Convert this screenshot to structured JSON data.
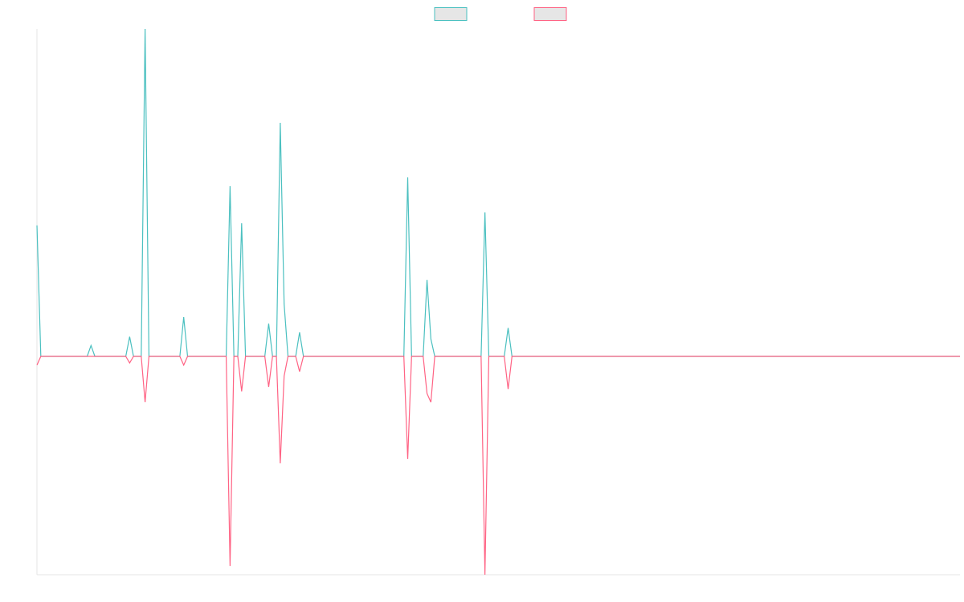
{
  "chart_data": {
    "type": "line",
    "legend": "top",
    "ylim": [
      -1,
      1.5
    ],
    "series": [
      {
        "color": "#4bc0c0",
        "values": [
          0.6,
          0,
          0,
          0,
          0,
          0,
          0,
          0,
          0,
          0,
          0,
          0,
          0,
          0,
          0.05,
          0,
          0,
          0,
          0,
          0,
          0,
          0,
          0,
          0,
          0.09,
          0,
          0,
          0,
          1.5,
          0,
          0,
          0,
          0,
          0,
          0,
          0,
          0,
          0,
          0.18,
          0,
          0,
          0,
          0,
          0,
          0,
          0,
          0,
          0,
          0,
          0,
          0.78,
          0,
          0,
          0.61,
          0,
          0,
          0,
          0,
          0,
          0,
          0.15,
          0,
          0,
          1.07,
          0.24,
          0,
          0,
          0,
          0.11,
          0,
          0,
          0,
          0,
          0,
          0,
          0,
          0,
          0,
          0,
          0,
          0,
          0,
          0,
          0,
          0,
          0,
          0,
          0,
          0,
          0,
          0,
          0,
          0,
          0,
          0,
          0,
          0.82,
          0,
          0,
          0,
          0,
          0.35,
          0.08,
          0,
          0,
          0,
          0,
          0,
          0,
          0,
          0,
          0,
          0,
          0,
          0,
          0,
          0.66,
          0,
          0,
          0,
          0,
          0,
          0.13,
          0,
          0,
          0,
          0,
          0,
          0,
          0,
          0,
          0,
          0,
          0,
          0,
          0,
          0,
          0,
          0,
          0,
          0,
          0,
          0,
          0,
          0,
          0,
          0,
          0,
          0,
          0,
          0,
          0,
          0,
          0,
          0,
          0,
          0,
          0,
          0,
          0,
          0,
          0,
          0,
          0,
          0,
          0,
          0,
          0,
          0,
          0,
          0,
          0,
          0,
          0,
          0,
          0,
          0,
          0,
          0,
          0,
          0,
          0,
          0,
          0,
          0,
          0,
          0,
          0,
          0,
          0,
          0,
          0,
          0,
          0,
          0,
          0,
          0,
          0,
          0,
          0,
          0,
          0,
          0,
          0,
          0,
          0,
          0,
          0,
          0,
          0,
          0,
          0,
          0,
          0,
          0,
          0,
          0,
          0,
          0,
          0,
          0,
          0,
          0,
          0,
          0,
          0,
          0,
          0,
          0,
          0,
          0,
          0,
          0,
          0,
          0,
          0,
          0,
          0,
          0,
          0
        ]
      },
      {
        "color": "#ff6384",
        "values": [
          -0.04,
          0,
          0,
          0,
          0,
          0,
          0,
          0,
          0,
          0,
          0,
          0,
          0,
          0,
          0,
          0,
          0,
          0,
          0,
          0,
          0,
          0,
          0,
          0,
          -0.03,
          0,
          0,
          0,
          -0.21,
          0,
          0,
          0,
          0,
          0,
          0,
          0,
          0,
          0,
          -0.04,
          0,
          0,
          0,
          0,
          0,
          0,
          0,
          0,
          0,
          0,
          0,
          -0.96,
          0,
          0,
          -0.16,
          0,
          0,
          0,
          0,
          0,
          0,
          -0.14,
          0,
          0,
          -0.49,
          -0.09,
          0,
          0,
          0,
          -0.07,
          0,
          0,
          0,
          0,
          0,
          0,
          0,
          0,
          0,
          0,
          0,
          0,
          0,
          0,
          0,
          0,
          0,
          0,
          0,
          0,
          0,
          0,
          0,
          0,
          0,
          0,
          0,
          -0.47,
          0,
          0,
          0,
          0,
          -0.17,
          -0.21,
          0,
          0,
          0,
          0,
          0,
          0,
          0,
          0,
          0,
          0,
          0,
          0,
          0,
          -1.0,
          0,
          0,
          0,
          0,
          0,
          -0.15,
          0,
          0,
          0,
          0,
          0,
          0,
          0,
          0,
          0,
          0,
          0,
          0,
          0,
          0,
          0,
          0,
          0,
          0,
          0,
          0,
          0,
          0,
          0,
          0,
          0,
          0,
          0,
          0,
          0,
          0,
          0,
          0,
          0,
          0,
          0,
          0,
          0,
          0,
          0,
          0,
          0,
          0,
          0,
          0,
          0,
          0,
          0,
          0,
          0,
          0,
          0,
          0,
          0,
          0,
          0,
          0,
          0,
          0,
          0,
          0,
          0,
          0,
          0,
          0,
          0,
          0,
          0,
          0,
          0,
          0,
          0,
          0,
          0,
          0,
          0,
          0,
          0,
          0,
          0,
          0,
          0,
          0,
          0,
          0,
          0,
          0,
          0,
          0,
          0,
          0,
          0,
          0,
          0,
          0,
          0,
          0,
          0,
          0,
          0,
          0,
          0,
          0,
          0,
          0,
          0,
          0,
          0,
          0,
          0,
          0,
          0,
          0,
          0,
          0,
          0,
          0,
          0
        ]
      }
    ]
  }
}
